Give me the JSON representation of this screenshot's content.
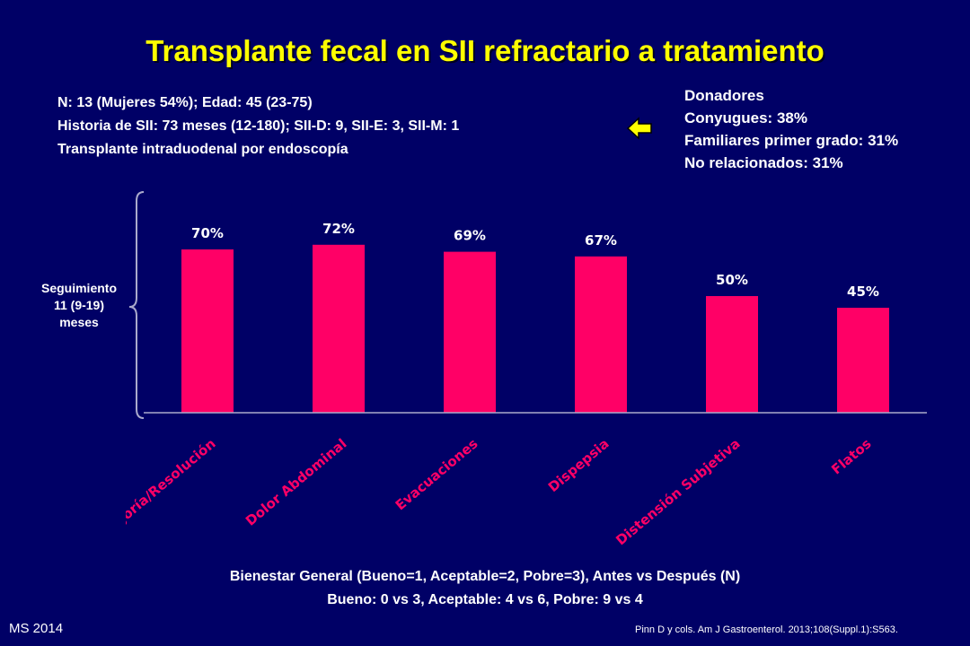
{
  "title": "Transplante fecal en SII refractario a tratamiento",
  "info": [
    "N: 13 (Mujeres 54%); Edad: 45 (23-75)",
    "Historia de SII: 73 meses (12-180);  SII-D: 9, SII-E: 3, SII-M: 1",
    "Transplante intraduodenal por endoscopía"
  ],
  "donors": {
    "heading": "Donadores",
    "items": [
      "Conyugues: 38%",
      "Familiares primer grado: 31%",
      "No relacionados: 31%"
    ]
  },
  "followup": [
    "Seguimiento",
    "11 (9-19)",
    "meses"
  ],
  "summary": [
    "Bienestar General (Bueno=1, Aceptable=2, Pobre=3), Antes vs Después (N)",
    "Bueno: 0 vs 3, Aceptable: 4 vs 6, Pobre: 9 vs 4"
  ],
  "footer": "MS 2014",
  "citation": "Pinn D y cols. Am J Gastroenterol. 2013;108(Suppl.1):S563.",
  "colors": {
    "background": "#000066",
    "title": "#ffff00",
    "bar": "#ff0066",
    "category_label": "#ff0066",
    "arrow": "#ffff00"
  },
  "icons": {
    "arrow": "left-arrow-icon",
    "brace": "left-brace-icon"
  },
  "chart_data": {
    "type": "bar",
    "categories": [
      "Mejoría/Resolución",
      "Dolor Abdominal",
      "Evacuaciones",
      "Dispepsia",
      "Distensión Subjetiva",
      "Flatos"
    ],
    "values": [
      70,
      72,
      69,
      67,
      50,
      45
    ],
    "data_labels": [
      "70%",
      "72%",
      "69%",
      "67%",
      "50%",
      "45%"
    ],
    "ylim": [
      0,
      100
    ],
    "grid": false,
    "legend": "none"
  }
}
